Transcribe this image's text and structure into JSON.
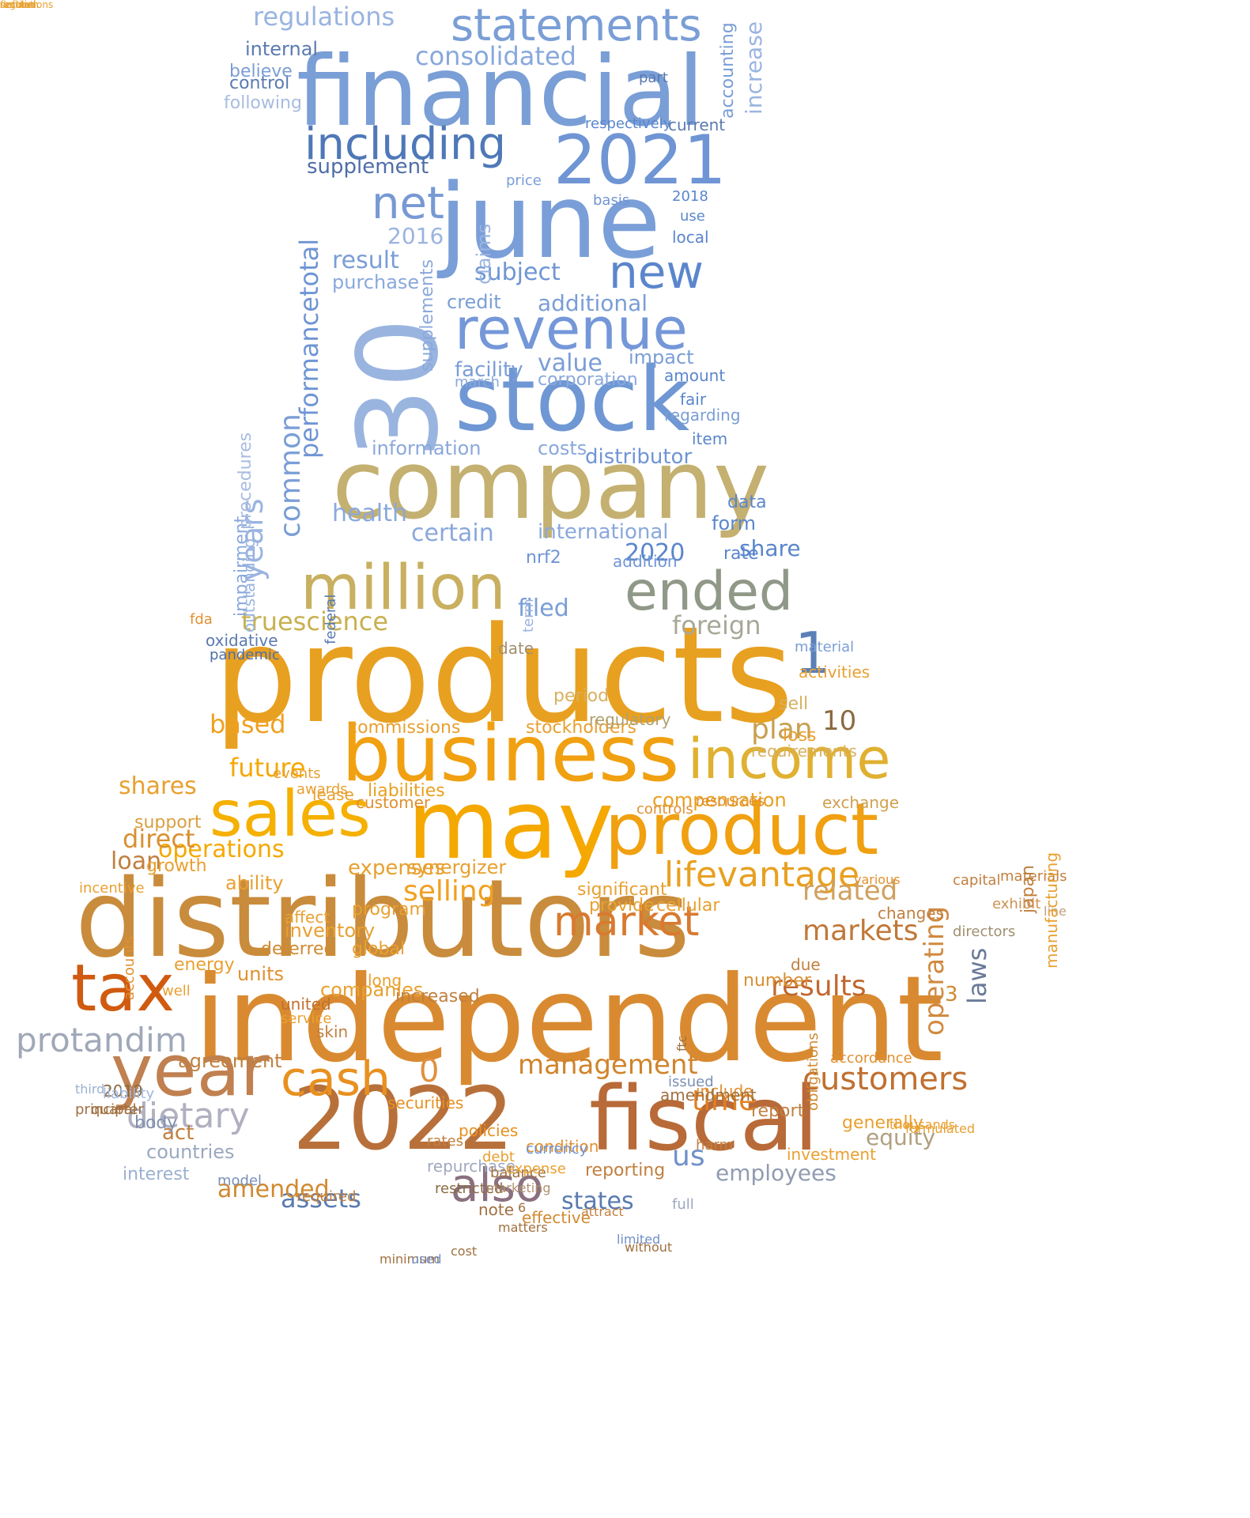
{
  "words": [
    {
      "text": "products",
      "c": "#e8a020"
    },
    {
      "text": "distributors",
      "c": "#c98c3c"
    },
    {
      "text": "independent",
      "c": "#d98a30"
    },
    {
      "text": "2022",
      "c": "#b8703a"
    },
    {
      "text": "fiscal",
      "c": "#b86a38"
    },
    {
      "text": "company",
      "c": "#c4b070"
    },
    {
      "text": "stock",
      "c": "#6f97d4"
    },
    {
      "text": "june",
      "c": "#7a9fd8"
    },
    {
      "text": "financial",
      "c": "#7a9ed6"
    },
    {
      "text": "business",
      "c": "#f0a010"
    },
    {
      "text": "may",
      "c": "#f5a800"
    },
    {
      "text": "product",
      "c": "#f0a010"
    },
    {
      "text": "sales",
      "c": "#f5b000"
    },
    {
      "text": "tax",
      "c": "#d05a10"
    },
    {
      "text": "year",
      "c": "#c08050"
    },
    {
      "text": "million",
      "c": "#c8b060"
    },
    {
      "text": "income",
      "c": "#e0b030"
    },
    {
      "text": "2021",
      "c": "#6f95d4"
    },
    {
      "text": "30",
      "c": "#9ab4e0"
    },
    {
      "text": "revenue",
      "c": "#7497d8"
    },
    {
      "text": "ended",
      "c": "#909888"
    },
    {
      "text": "statements",
      "c": "#7a9ed6"
    },
    {
      "text": "including",
      "c": "#4f78b8"
    },
    {
      "text": "new",
      "c": "#5b86cc"
    },
    {
      "text": "net",
      "c": "#7799d4"
    },
    {
      "text": "cash",
      "c": "#e89020"
    },
    {
      "text": "also",
      "c": "#8a7080"
    },
    {
      "text": "market",
      "c": "#d87a30"
    },
    {
      "text": "1",
      "c": "#5b80b8"
    },
    {
      "text": "lifevantage",
      "c": "#e8a020"
    },
    {
      "text": "customers",
      "c": "#c07030"
    },
    {
      "text": "protandim",
      "c": "#a0a8b8"
    },
    {
      "text": "dietary",
      "c": "#b0b0c0"
    },
    {
      "text": "truescience",
      "c": "#c8b050"
    },
    {
      "text": "consolidated",
      "c": "#88a8dc"
    },
    {
      "text": "regulations",
      "c": "#9ab4e0"
    },
    {
      "text": "supplement",
      "c": "#4f6ea8"
    },
    {
      "text": "selling",
      "c": "#f0a020"
    },
    {
      "text": "related",
      "c": "#d0a060"
    },
    {
      "text": "markets",
      "c": "#c07838"
    },
    {
      "text": "results",
      "c": "#c06830"
    },
    {
      "text": "operations",
      "c": "#f5a800"
    },
    {
      "text": "shares",
      "c": "#e8a030"
    },
    {
      "text": "future",
      "c": "#f5a800"
    },
    {
      "text": "based",
      "c": "#f0a020"
    },
    {
      "text": "plan",
      "c": "#c8a050"
    },
    {
      "text": "10",
      "c": "#8a6a40"
    },
    {
      "text": "management",
      "c": "#d0842c"
    },
    {
      "text": "time",
      "c": "#e08020"
    },
    {
      "text": "us",
      "c": "#7090c8"
    },
    {
      "text": "states",
      "c": "#5a7ab0"
    },
    {
      "text": "assets",
      "c": "#5a7ab0"
    },
    {
      "text": "employees",
      "c": "#909cb0"
    },
    {
      "text": "equity",
      "c": "#b0a080"
    },
    {
      "text": "laws",
      "c": "#6a7a98"
    },
    {
      "text": "operating",
      "c": "#d08a40"
    },
    {
      "text": "3",
      "c": "#d08a30"
    },
    {
      "text": "0",
      "c": "#e09040"
    },
    {
      "text": "filed",
      "c": "#7a9ed6"
    },
    {
      "text": "foreign",
      "c": "#a8a898"
    },
    {
      "text": "health",
      "c": "#8aa8dc"
    },
    {
      "text": "certain",
      "c": "#8aa8dc"
    },
    {
      "text": "2020",
      "c": "#5a86cc"
    },
    {
      "text": "share",
      "c": "#5a86cc"
    },
    {
      "text": "international",
      "c": "#8aa8dc"
    },
    {
      "text": "years",
      "c": "#9ab4e0"
    },
    {
      "text": "common",
      "c": "#7a9ed6"
    },
    {
      "text": "performance",
      "c": "#6f95d4"
    },
    {
      "text": "total",
      "c": "#6f95d4"
    },
    {
      "text": "information",
      "c": "#8aa8dc"
    },
    {
      "text": "distributor",
      "c": "#6f95d4"
    },
    {
      "text": "costs",
      "c": "#8aa8dc"
    },
    {
      "text": "value",
      "c": "#7a9ed6"
    },
    {
      "text": "facility",
      "c": "#7a9ed6"
    },
    {
      "text": "result",
      "c": "#7a9ed6"
    },
    {
      "text": "subject",
      "c": "#6f95d4"
    },
    {
      "text": "2016",
      "c": "#9ab4e0"
    },
    {
      "text": "additional",
      "c": "#7a9ed6"
    },
    {
      "text": "credit",
      "c": "#7a9ed6"
    },
    {
      "text": "purchase",
      "c": "#8aa8dc"
    },
    {
      "text": "claims",
      "c": "#9ab4e0"
    },
    {
      "text": "supplements",
      "c": "#8aa8dc"
    },
    {
      "text": "impact",
      "c": "#7a9ed6"
    },
    {
      "text": "corporation",
      "c": "#8aa8dc"
    },
    {
      "text": "amount",
      "c": "#5a86cc"
    },
    {
      "text": "fair",
      "c": "#5a86cc"
    },
    {
      "text": "regarding",
      "c": "#7a9ed6"
    },
    {
      "text": "item",
      "c": "#5a86cc"
    },
    {
      "text": "march",
      "c": "#8aa8dc"
    },
    {
      "text": "nrf2",
      "c": "#6f95d4"
    },
    {
      "text": "form",
      "c": "#5a86cc"
    },
    {
      "text": "data",
      "c": "#5a86cc"
    },
    {
      "text": "rate",
      "c": "#5a86cc"
    },
    {
      "text": "addition",
      "c": "#6f95d4"
    },
    {
      "text": "internal",
      "c": "#5a7ab0"
    },
    {
      "text": "control",
      "c": "#5a7ab0"
    },
    {
      "text": "believe",
      "c": "#7a9ed6"
    },
    {
      "text": "following",
      "c": "#a8bce0"
    },
    {
      "text": "part",
      "c": "#5a7ab0"
    },
    {
      "text": "accounting",
      "c": "#7a9ed6"
    },
    {
      "text": "increase",
      "c": "#9ab4e0"
    },
    {
      "text": "current",
      "c": "#5a7ab0"
    },
    {
      "text": "respectively",
      "c": "#5a86cc"
    },
    {
      "text": "price",
      "c": "#7a9ed6"
    },
    {
      "text": "basis",
      "c": "#6f95d4"
    },
    {
      "text": "local",
      "c": "#5a86cc"
    },
    {
      "text": "use",
      "c": "#5a86cc"
    },
    {
      "text": "2018",
      "c": "#5a86cc"
    },
    {
      "text": "commissions",
      "c": "#e8a030"
    },
    {
      "text": "stockholders",
      "c": "#e8a030"
    },
    {
      "text": "requirements",
      "c": "#d8b060"
    },
    {
      "text": "exchange",
      "c": "#d0a050"
    },
    {
      "text": "compensation",
      "c": "#e8a020"
    },
    {
      "text": "liabilities",
      "c": "#e8a020"
    },
    {
      "text": "direct",
      "c": "#d89030"
    },
    {
      "text": "support",
      "c": "#d8a040"
    },
    {
      "text": "loan",
      "c": "#c08040"
    },
    {
      "text": "expenses",
      "c": "#e8a030"
    },
    {
      "text": "ability",
      "c": "#e8a030"
    },
    {
      "text": "synergizer",
      "c": "#e8a030"
    },
    {
      "text": "significant",
      "c": "#e8a030"
    },
    {
      "text": "provide",
      "c": "#e8a030"
    },
    {
      "text": "cellular",
      "c": "#e8a030"
    },
    {
      "text": "companies",
      "c": "#e8a030"
    },
    {
      "text": "united",
      "c": "#c07030"
    },
    {
      "text": "securities",
      "c": "#e89020"
    },
    {
      "text": "policies",
      "c": "#e89020"
    },
    {
      "text": "include",
      "c": "#e09030"
    },
    {
      "text": "report",
      "c": "#c08040"
    },
    {
      "text": "reporting",
      "c": "#c08040"
    },
    {
      "text": "amended",
      "c": "#d08a30"
    },
    {
      "text": "agreement",
      "c": "#c08040"
    },
    {
      "text": "act",
      "c": "#c08040"
    },
    {
      "text": "2019",
      "c": "#8a6a40"
    },
    {
      "text": "quarter",
      "c": "#a07040"
    },
    {
      "text": "countries",
      "c": "#9aa8c0"
    },
    {
      "text": "body",
      "c": "#8090b0"
    },
    {
      "text": "third",
      "c": "#9ab0d0"
    },
    {
      "text": "interest",
      "c": "#9ab0d0"
    },
    {
      "text": "model",
      "c": "#7a90b8"
    },
    {
      "text": "liability",
      "c": "#a0b8e0"
    },
    {
      "text": "principal",
      "c": "#a07040"
    },
    {
      "text": "note",
      "c": "#a07040"
    },
    {
      "text": "6",
      "c": "#a07040"
    },
    {
      "text": "effective",
      "c": "#d08a30"
    },
    {
      "text": "restricted",
      "c": "#8a6a40"
    },
    {
      "text": "repurchase",
      "c": "#a0a8c0"
    },
    {
      "text": "required",
      "c": "#c08040"
    },
    {
      "text": "condition",
      "c": "#e09030"
    },
    {
      "text": "balance",
      "c": "#a07040"
    },
    {
      "text": "ftc",
      "c": "#a07040"
    },
    {
      "text": "marketing",
      "c": "#b09070"
    },
    {
      "text": "currency",
      "c": "#6f95d4"
    },
    {
      "text": "expense",
      "c": "#e8a030"
    },
    {
      "text": "number",
      "c": "#d89030"
    },
    {
      "text": "period",
      "c": "#d8b060"
    },
    {
      "text": "sell",
      "c": "#d8b060"
    },
    {
      "text": "activities",
      "c": "#e8a030"
    },
    {
      "text": "loss",
      "c": "#e8a030"
    },
    {
      "text": "regulatory",
      "c": "#b0a070"
    },
    {
      "text": "date",
      "c": "#a09070"
    },
    {
      "text": "term",
      "c": "#9ab4e0"
    },
    {
      "text": "material",
      "c": "#7a9ed6"
    },
    {
      "text": "impairment",
      "c": "#8aa8dc"
    },
    {
      "text": "outstanding",
      "c": "#9ab4e0"
    },
    {
      "text": "procedures",
      "c": "#a8bce0"
    },
    {
      "text": "federal",
      "c": "#5a7ab0"
    },
    {
      "text": "oxidative",
      "c": "#5a7ab0"
    },
    {
      "text": "pandemic",
      "c": "#4f6ea8"
    },
    {
      "text": "fda",
      "c": "#e09030"
    },
    {
      "text": "units",
      "c": "#e09030"
    },
    {
      "text": "energy",
      "c": "#e8a030"
    },
    {
      "text": "increased",
      "c": "#c08040"
    },
    {
      "text": "accounts",
      "c": "#e09030"
    },
    {
      "text": "skin",
      "c": "#c08040"
    },
    {
      "text": "japan",
      "c": "#c08040"
    },
    {
      "text": "materials",
      "c": "#c08040"
    },
    {
      "text": "due",
      "c": "#c08040"
    },
    {
      "text": "exhibit",
      "c": "#d09050"
    },
    {
      "text": "line",
      "c": "#c0a080"
    },
    {
      "text": "directors",
      "c": "#a09070"
    },
    {
      "text": "capital",
      "c": "#c08040"
    },
    {
      "text": "changes",
      "c": "#c08040"
    },
    {
      "text": "various",
      "c": "#e09030"
    },
    {
      "text": "controls",
      "c": "#e09030"
    },
    {
      "text": "resources",
      "c": "#e09030"
    },
    {
      "text": "customer",
      "c": "#e09030"
    },
    {
      "text": "lease",
      "c": "#e8a030"
    },
    {
      "text": "events",
      "c": "#e8a030"
    },
    {
      "text": "awards",
      "c": "#e8a030"
    },
    {
      "text": "growth",
      "c": "#e8a030"
    },
    {
      "text": "program",
      "c": "#e8a030"
    },
    {
      "text": "global",
      "c": "#e8a030"
    },
    {
      "text": "deferred",
      "c": "#d08a30"
    },
    {
      "text": "inventory",
      "c": "#e8a030"
    },
    {
      "text": "affect",
      "c": "#e8a030"
    },
    {
      "text": "long",
      "c": "#e8a030"
    },
    {
      "text": "well",
      "c": "#e8a030"
    },
    {
      "text": "service",
      "c": "#e8a030"
    },
    {
      "text": "incentive",
      "c": "#e8a030"
    },
    {
      "text": "manufacturing",
      "c": "#e8a030"
    },
    {
      "text": "generally",
      "c": "#e8a030"
    },
    {
      "text": "amendment",
      "c": "#a07040"
    },
    {
      "text": "issued",
      "c": "#7a90b8"
    },
    {
      "text": "accordance",
      "c": "#e09030"
    },
    {
      "text": "thousands",
      "c": "#e8a030"
    },
    {
      "text": "formulated",
      "c": "#e8a030"
    },
    {
      "text": "attract",
      "c": "#c08040"
    },
    {
      "text": "cost",
      "c": "#a07040"
    },
    {
      "text": "matters",
      "c": "#a07040"
    },
    {
      "text": "minimum",
      "c": "#a07040"
    },
    {
      "text": "used",
      "c": "#7090c8"
    },
    {
      "text": "without",
      "c": "#a07040"
    },
    {
      "text": "limited",
      "c": "#7090c8"
    },
    {
      "text": "full",
      "c": "#9aa8c0"
    },
    {
      "text": "obligations",
      "c": "#d08a30"
    },
    {
      "text": "investment",
      "c": "#e8a030"
    },
    {
      "text": "harm",
      "c": "#c08040"
    },
    {
      "text": "rates",
      "c": "#c08040"
    },
    {
      "text": "debt",
      "c": "#e8a030"
    },
    {
      "text": "section",
      "c": "#e8a030"
    },
    {
      "text": "defined",
      "c": "#e8a030"
    },
    {
      "text": "function",
      "c": "#e8a030"
    },
    {
      "text": "regulations",
      "c": "#e8a030"
    }
  ]
}
